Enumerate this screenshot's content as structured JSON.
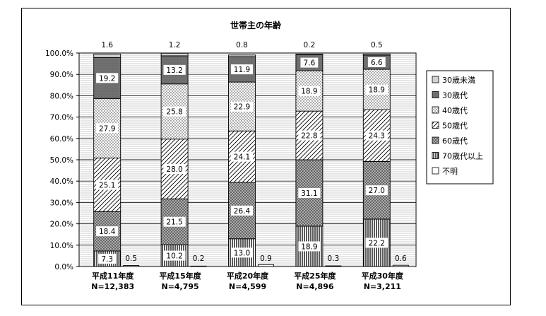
{
  "chart_data": {
    "type": "bar",
    "stacked": true,
    "title": "世帯主の年齢",
    "xlabel": "",
    "ylabel": "",
    "ylim": [
      0,
      100
    ],
    "yticks": [
      "0.0%",
      "10.0%",
      "20.0%",
      "30.0%",
      "40.0%",
      "50.0%",
      "60.0%",
      "70.0%",
      "80.0%",
      "90.0%",
      "100.0%"
    ],
    "grid": true,
    "legend_position": "right",
    "categories": [
      {
        "label": "平成11年度",
        "n": "N=12,383"
      },
      {
        "label": "平成15年度",
        "n": "N=4,795"
      },
      {
        "label": "平成20年度",
        "n": "N=4,599"
      },
      {
        "label": "平成25年度",
        "n": "N=4,896"
      },
      {
        "label": "平成30年度",
        "n": "N=3,211"
      }
    ],
    "series": [
      {
        "name": "70歳代以上",
        "pattern": "vlines",
        "values": [
          7.3,
          10.2,
          13.0,
          18.9,
          22.2
        ],
        "labels": [
          "7.3",
          "10.2",
          "13.0",
          "18.9",
          "22.2"
        ]
      },
      {
        "name": "60歳代",
        "pattern": "crosshatch",
        "values": [
          18.4,
          21.5,
          26.4,
          31.1,
          27.0
        ],
        "labels": [
          "18.4",
          "21.5",
          "26.4",
          "31.1",
          "27.0"
        ]
      },
      {
        "name": "50歳代",
        "pattern": "diag",
        "values": [
          25.1,
          28.0,
          24.1,
          22.8,
          24.3
        ],
        "labels": [
          "25.1",
          "28.0",
          "24.1",
          "22.8",
          "24.3"
        ]
      },
      {
        "name": "40歳代",
        "pattern": "dots",
        "values": [
          27.9,
          25.8,
          22.9,
          18.9,
          18.9
        ],
        "labels": [
          "27.9",
          "25.8",
          "22.9",
          "18.9",
          "18.9"
        ]
      },
      {
        "name": "30歳代",
        "pattern": "dark",
        "values": [
          19.2,
          13.2,
          11.9,
          7.6,
          6.6
        ],
        "labels": [
          "19.2",
          "13.2",
          "11.9",
          "7.6",
          "6.6"
        ]
      },
      {
        "name": "30歳未満",
        "pattern": "light",
        "values": [
          1.6,
          1.2,
          0.8,
          0.2,
          0.5
        ],
        "labels": [
          "1.6",
          "1.2",
          "0.8",
          "0.2",
          "0.5"
        ]
      }
    ],
    "unknown": {
      "name": "不明",
      "values": [
        0.5,
        0.2,
        0.9,
        0.3,
        0.6
      ],
      "labels": [
        "0.5",
        "0.2",
        "0.9",
        "0.3",
        "0.6"
      ]
    },
    "legend_order": [
      "30歳未満",
      "30歳代",
      "40歳代",
      "50歳代",
      "60歳代",
      "70歳代以上",
      "不明"
    ]
  }
}
